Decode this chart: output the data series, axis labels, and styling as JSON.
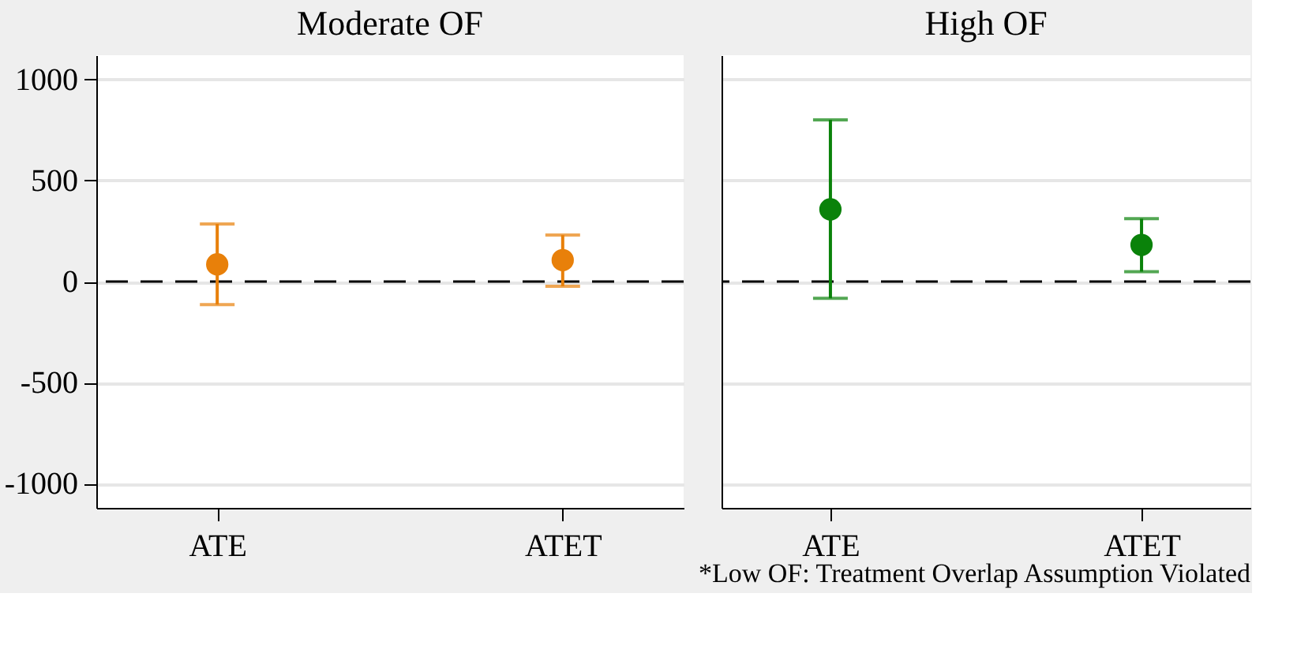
{
  "chart_data": [
    {
      "type": "scatter",
      "title": "Moderate OF",
      "categories": [
        "ATE",
        "ATET"
      ],
      "values": [
        85,
        106
      ],
      "errors": [
        [
          -114,
          285
        ],
        [
          -23,
          230
        ]
      ],
      "color": "#e8800a",
      "marker": "circle",
      "ylim": [
        -1120,
        1120
      ],
      "yticks": [
        -1000,
        -500,
        0,
        500,
        1000
      ],
      "grid": "y",
      "ref_lines": [
        {
          "axis": "y",
          "value": 0,
          "line_style": "dashed",
          "color": "#000000"
        }
      ]
    },
    {
      "type": "scatter",
      "title": "High OF",
      "categories": [
        "ATE",
        "ATET"
      ],
      "values": [
        357,
        181
      ],
      "errors": [
        [
          -83,
          800
        ],
        [
          49,
          311
        ]
      ],
      "color": "#0a820a",
      "marker": "circle",
      "ylim": [
        -1120,
        1120
      ],
      "yticks": [
        -1000,
        -500,
        0,
        500,
        1000
      ],
      "grid": "y",
      "tick_labels": "x",
      "ref_lines": [
        {
          "axis": "y",
          "value": 0,
          "line_style": "dashed",
          "color": "#000000"
        }
      ],
      "annotations": [
        "*Low OF: Treatment Overlap Assumption Violated"
      ]
    }
  ]
}
